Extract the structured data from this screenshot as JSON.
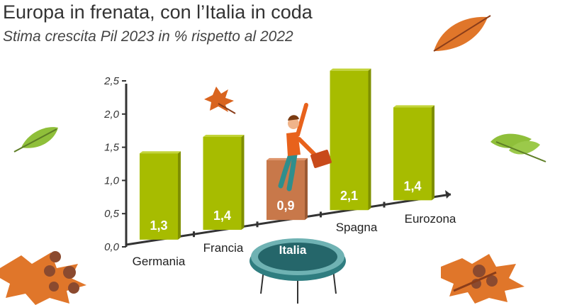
{
  "header": {
    "title": "Europa in frenata, con l’Italia in coda",
    "subtitle": "Stima crescita Pil 2023 in % rispetto al 2022"
  },
  "colors": {
    "bar": "#a7bc00",
    "highlight_bar": "#c8784a",
    "axis": "#333333",
    "trampoline": "#2f7d80"
  },
  "chart_data": {
    "type": "bar",
    "title": "Europa in frenata, con l’Italia in coda",
    "subtitle": "Stima crescita Pil 2023 in % rispetto al 2022",
    "categories": [
      "Germania",
      "Francia",
      "Italia",
      "Spagna",
      "Eurozona"
    ],
    "values": [
      1.3,
      1.4,
      0.9,
      2.1,
      1.4
    ],
    "value_labels": [
      "1,3",
      "1,4",
      "0,9",
      "2,1",
      "1,4"
    ],
    "highlight": "Italia",
    "yticks": [
      "0,0",
      "0,5",
      "1,0",
      "1,5",
      "2,0",
      "2,5"
    ],
    "ylim": [
      0,
      2.5
    ],
    "grid": false,
    "legend": "none"
  }
}
